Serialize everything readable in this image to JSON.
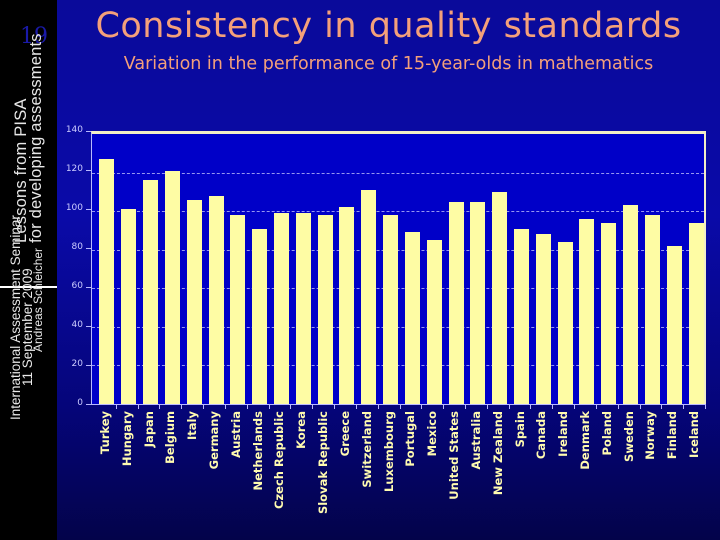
{
  "sidebar": {
    "slide_number": "19",
    "title_line1": "Lessons from PISA",
    "title_line2": "for developing assessments",
    "meta_line1": "International Assessment Seminar",
    "meta_line2": "11 September 2009",
    "meta_line3": "Andreas Schleicher"
  },
  "header": {
    "title": "Consistency in quality standards",
    "subtitle": "Variation in the performance of 15-year-olds in mathematics"
  },
  "colors": {
    "bar": "#fefca4",
    "plot_background": "#0000c8",
    "title": "#f4a07a",
    "label": "#fffbb0"
  },
  "chart_data": {
    "type": "bar",
    "title": "Consistency in quality standards",
    "subtitle": "Variation in the performance of 15-year-olds in mathematics",
    "xlabel": "",
    "ylabel": "",
    "ylim": [
      0,
      140
    ],
    "yticks": [
      0,
      20,
      40,
      60,
      80,
      100,
      120,
      140
    ],
    "grid": "horizontal dashed",
    "legend": null,
    "categories": [
      "Turkey",
      "Hungary",
      "Japan",
      "Belgium",
      "Italy",
      "Germany",
      "Austria",
      "Netherlands",
      "Czech Republic",
      "Korea",
      "Slovak Republic",
      "Greece",
      "Switzerland",
      "Luxembourg",
      "Portugal",
      "Mexico",
      "United States",
      "Australia",
      "New Zealand",
      "Spain",
      "Canada",
      "Ireland",
      "Denmark",
      "Poland",
      "Sweden",
      "Norway",
      "Finland",
      "Iceland"
    ],
    "values": [
      127,
      101,
      116,
      121,
      106,
      108,
      98,
      91,
      99,
      99,
      98,
      102,
      111,
      98,
      89,
      85,
      105,
      105,
      110,
      91,
      88,
      84,
      96,
      94,
      103,
      98,
      82,
      94
    ]
  }
}
